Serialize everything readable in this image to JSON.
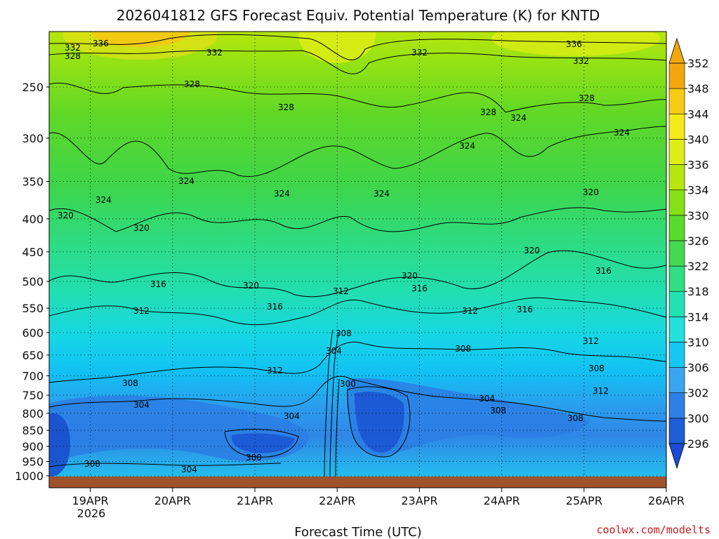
{
  "chart_data": {
    "type": "contour",
    "title": "2026041812 GFS Forecast Equiv. Potential Temperature (K) for KNTD",
    "xlabel": "Forecast Time (UTC)",
    "ylabel": "",
    "x_ticks": [
      "19APR",
      "20APR",
      "21APR",
      "22APR",
      "23APR",
      "24APR",
      "25APR",
      "26APR"
    ],
    "x_year": "2026",
    "x_range_days": [
      18.5,
      26.0
    ],
    "y_ticks": [
      250,
      300,
      350,
      400,
      450,
      500,
      550,
      600,
      650,
      700,
      750,
      800,
      850,
      900,
      950,
      1000
    ],
    "y_range_hPa": [
      200,
      1013
    ],
    "colorbar_levels": [
      296,
      300,
      302,
      306,
      310,
      314,
      318,
      322,
      326,
      330,
      334,
      336,
      340,
      344,
      348,
      352
    ],
    "colorbar_colors": [
      "#1e5fd8",
      "#2f80e6",
      "#3aa6f0",
      "#14c8f2",
      "#22e1dc",
      "#21e2b2",
      "#30df82",
      "#44d853",
      "#57dc2e",
      "#86e016",
      "#b5e60e",
      "#dcee15",
      "#f4ea1a",
      "#f5cb13",
      "#f2a80d"
    ],
    "contour_labels": [
      "336",
      "332",
      "328",
      "324",
      "320",
      "316",
      "312",
      "308",
      "304",
      "300"
    ],
    "theta_e_profile_K": {
      "pressure_hPa": [
        250,
        300,
        350,
        400,
        450,
        500,
        550,
        600,
        650,
        700,
        750,
        800,
        850,
        900,
        950,
        1000
      ],
      "approx_values": [
        329,
        326,
        324,
        321,
        319,
        317,
        315,
        313,
        311,
        309,
        306,
        304,
        303,
        302,
        303,
        305
      ]
    },
    "credit": "coolwx.com/modelts"
  }
}
